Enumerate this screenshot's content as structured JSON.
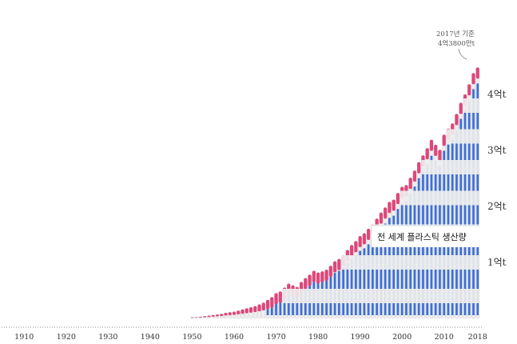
{
  "chart_data": {
    "type": "bar",
    "title": "",
    "xlabel": "",
    "ylabel": "",
    "series_label": "전 세계 플라스틱 생산량",
    "annotation": {
      "line1": "2017년 기준",
      "line2": "4억3800만t",
      "year": 2017,
      "value": 438
    },
    "unit": "백만 t",
    "xlim": [
      1905,
      2019
    ],
    "ylim": [
      0,
      460
    ],
    "x_ticks": [
      1910,
      1920,
      1930,
      1940,
      1950,
      1960,
      1970,
      1980,
      1990,
      2000,
      2010,
      2018
    ],
    "x_tick_labels": [
      "1910",
      "1920",
      "1930",
      "1940",
      "1950",
      "1960",
      "1970",
      "1980",
      "1990",
      "2000",
      "2010",
      "2018"
    ],
    "y_ticks": [
      100,
      200,
      300,
      400
    ],
    "y_tick_labels": [
      "1억t",
      "2억t",
      "3억t",
      "4억t"
    ],
    "colors": {
      "blue": "#3a6fd8",
      "pink": "#e0457a",
      "white": "#f0f0f0",
      "outline": "#c8c8c8",
      "baseline": "#888888"
    },
    "x": [
      1950,
      1951,
      1952,
      1953,
      1954,
      1955,
      1956,
      1957,
      1958,
      1959,
      1960,
      1961,
      1962,
      1963,
      1964,
      1965,
      1966,
      1967,
      1968,
      1969,
      1970,
      1971,
      1972,
      1973,
      1974,
      1975,
      1976,
      1977,
      1978,
      1979,
      1980,
      1981,
      1982,
      1983,
      1984,
      1985,
      1986,
      1987,
      1988,
      1989,
      1990,
      1991,
      1992,
      1993,
      1994,
      1995,
      1996,
      1997,
      1998,
      1999,
      2000,
      2001,
      2002,
      2003,
      2004,
      2005,
      2006,
      2007,
      2008,
      2009,
      2010,
      2011,
      2012,
      2013,
      2014,
      2015,
      2016,
      2017,
      2018
    ],
    "values": [
      2,
      2,
      3,
      4,
      5,
      6,
      7,
      8,
      10,
      11,
      12,
      14,
      16,
      18,
      20,
      22,
      25,
      28,
      33,
      38,
      45,
      48,
      55,
      62,
      59,
      56,
      65,
      72,
      78,
      85,
      82,
      84,
      87,
      94,
      102,
      106,
      113,
      122,
      131,
      138,
      147,
      152,
      160,
      168,
      178,
      189,
      198,
      208,
      212,
      224,
      235,
      238,
      251,
      264,
      279,
      291,
      304,
      319,
      310,
      301,
      328,
      339,
      348,
      365,
      385,
      400,
      418,
      438,
      448
    ]
  }
}
